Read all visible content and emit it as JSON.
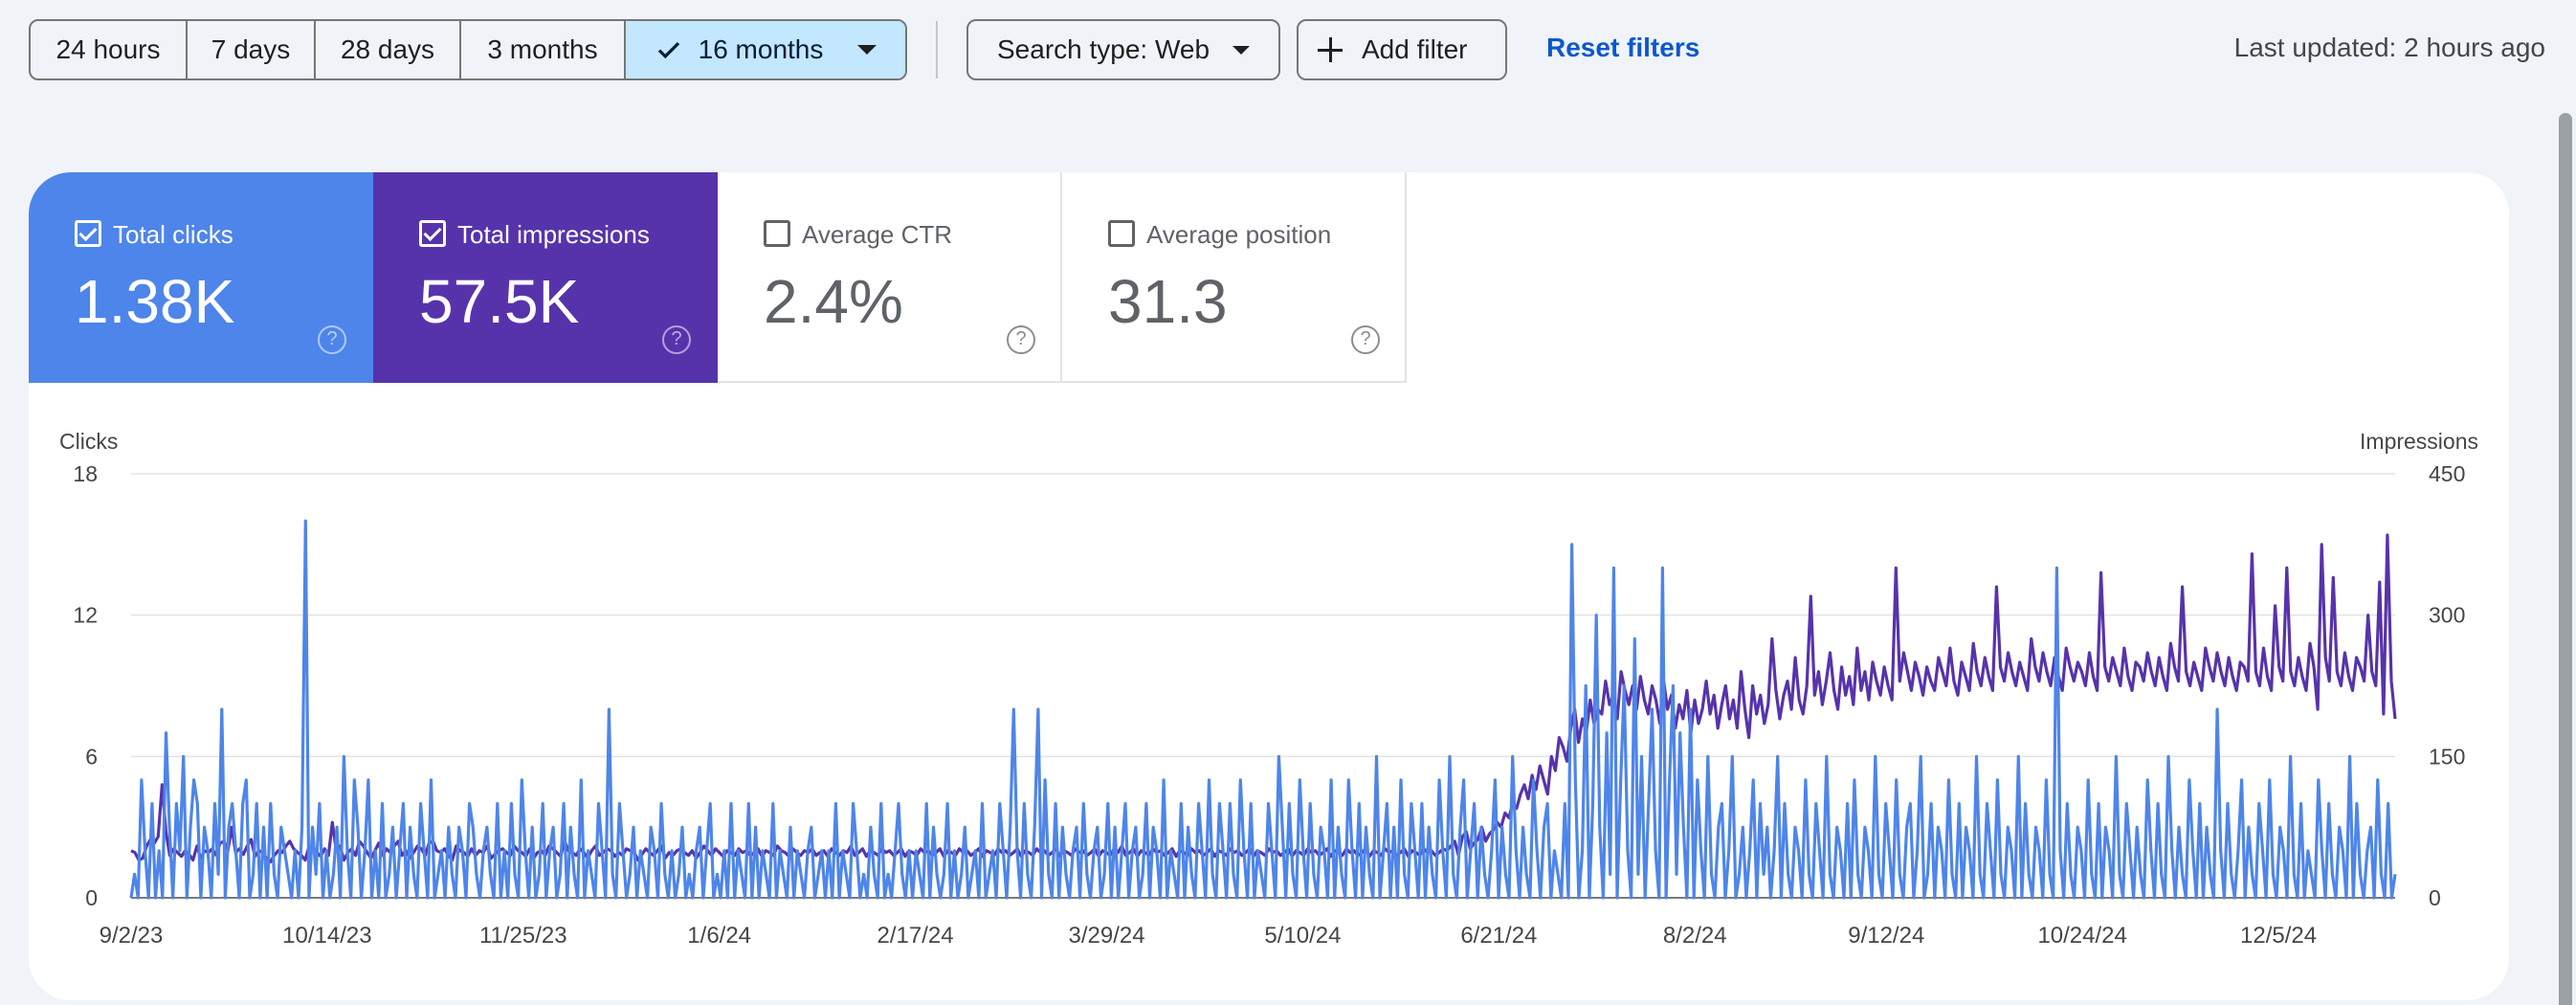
{
  "toolbar": {
    "ranges": [
      "24 hours",
      "7 days",
      "28 days",
      "3 months",
      "16 months"
    ],
    "selected_range": "16 months",
    "search_type": "Search type: Web",
    "add_filter": "Add filter",
    "reset_filters": "Reset filters",
    "last_updated": "Last updated: 2 hours ago"
  },
  "metrics": [
    {
      "label": "Total clicks",
      "value": "1.38K",
      "checked": true,
      "color": "#4e85ea"
    },
    {
      "label": "Total impressions",
      "value": "57.5K",
      "checked": true,
      "color": "#5733ab"
    },
    {
      "label": "Average CTR",
      "value": "2.4%",
      "checked": false,
      "color": "#ffffff"
    },
    {
      "label": "Average position",
      "value": "31.3",
      "checked": false,
      "color": "#ffffff"
    }
  ],
  "help_glyph": "?",
  "chart_data": {
    "type": "line",
    "ylabel": "Clicks",
    "y2label": "Impressions",
    "ylim": [
      0,
      18
    ],
    "y2lim": [
      0,
      450
    ],
    "yticks": [
      "0",
      "6",
      "12",
      "18"
    ],
    "y2ticks": [
      "0",
      "150",
      "300",
      "450"
    ],
    "x_tick_labels": [
      "9/2/23",
      "10/14/23",
      "11/25/23",
      "1/6/24",
      "2/17/24",
      "3/29/24",
      "5/10/24",
      "6/21/24",
      "8/2/24",
      "9/12/24",
      "10/24/24",
      "12/5/24"
    ],
    "x_start": "9/2/23",
    "x_end": "12/30/24",
    "grid": true,
    "series": [
      {
        "name": "Clicks",
        "axis": "left",
        "color": "#4e85ea",
        "values": [
          0,
          1,
          0,
          5,
          2,
          0,
          4,
          0,
          2,
          0,
          7,
          3,
          0,
          4,
          2,
          6,
          0,
          3,
          5,
          4,
          0,
          3,
          2,
          0,
          4,
          1,
          8,
          0,
          3,
          4,
          2,
          0,
          4,
          5,
          0,
          1,
          4,
          0,
          3,
          0,
          4,
          1,
          0,
          3,
          2,
          1,
          0,
          2,
          0,
          3,
          16,
          0,
          3,
          1,
          4,
          0,
          2,
          0,
          1,
          3,
          0,
          6,
          2,
          0,
          5,
          3,
          0,
          2,
          5,
          0,
          2,
          0,
          4,
          0,
          1,
          3,
          0,
          2,
          4,
          0,
          3,
          1,
          0,
          4,
          2,
          0,
          5,
          0,
          1,
          2,
          0,
          3,
          1,
          0,
          3,
          2,
          0,
          4,
          3,
          1,
          0,
          2,
          3,
          1,
          0,
          4,
          0,
          2,
          0,
          4,
          1,
          0,
          5,
          2,
          0,
          3,
          0,
          1,
          4,
          0,
          2,
          3,
          0,
          1,
          4,
          0,
          3,
          1,
          0,
          5,
          0,
          2,
          1,
          0,
          4,
          2,
          0,
          8,
          1,
          0,
          4,
          2,
          0,
          1,
          3,
          0,
          2,
          1,
          0,
          3,
          2,
          0,
          4,
          1,
          0,
          2,
          0,
          1,
          3,
          0,
          1,
          0,
          2,
          3,
          0,
          2,
          4,
          0,
          1,
          0,
          2,
          0,
          4,
          0,
          2,
          1,
          0,
          4,
          0,
          3,
          0,
          2,
          1,
          0,
          4,
          0,
          2,
          1,
          0,
          3,
          0,
          2,
          1,
          0,
          2,
          3,
          0,
          1,
          2,
          0,
          2,
          0,
          4,
          0,
          2,
          1,
          0,
          4,
          2,
          0,
          1,
          0,
          3,
          1,
          0,
          4,
          0,
          1,
          0,
          2,
          4,
          1,
          0,
          2,
          0,
          2,
          1,
          0,
          4,
          0,
          3,
          1,
          0,
          1,
          4,
          0,
          2,
          0,
          1,
          3,
          0,
          1,
          2,
          0,
          4,
          0,
          1,
          2,
          0,
          4,
          2,
          0,
          3,
          8,
          2,
          0,
          4,
          1,
          0,
          3,
          8,
          0,
          5,
          1,
          0,
          4,
          0,
          3,
          1,
          0,
          2,
          3,
          0,
          4,
          1,
          0,
          2,
          3,
          0,
          1,
          4,
          0,
          3,
          0,
          2,
          4,
          0,
          2,
          3,
          0,
          1,
          4,
          0,
          3,
          2,
          0,
          5,
          0,
          2,
          1,
          0,
          4,
          0,
          3,
          1,
          0,
          4,
          2,
          0,
          5,
          1,
          0,
          4,
          2,
          0,
          4,
          1,
          0,
          5,
          2,
          0,
          4,
          0,
          2,
          1,
          0,
          4,
          2,
          0,
          6,
          3,
          0,
          4,
          1,
          0,
          5,
          2,
          0,
          4,
          1,
          0,
          3,
          2,
          0,
          5,
          0,
          3,
          1,
          0,
          5,
          2,
          0,
          4,
          0,
          3,
          1,
          0,
          6,
          0,
          2,
          4,
          0,
          3,
          0,
          5,
          1,
          0,
          4,
          2,
          0,
          4,
          0,
          3,
          1,
          0,
          5,
          2,
          0,
          6,
          1,
          0,
          3,
          5,
          0,
          2,
          4,
          0,
          3,
          1,
          0,
          2,
          5,
          0,
          3,
          1,
          0,
          6,
          2,
          0,
          3,
          1,
          0,
          5,
          2,
          0,
          3,
          4,
          0,
          2,
          1,
          0,
          4,
          0,
          15,
          5,
          0,
          2,
          9,
          0,
          4,
          12,
          3,
          0,
          7,
          1,
          14,
          0,
          5,
          9,
          2,
          0,
          11,
          1,
          6,
          0,
          4,
          8,
          2,
          0,
          14,
          0,
          5,
          9,
          1,
          7,
          3,
          0,
          8,
          0,
          5,
          2,
          0,
          6,
          1,
          0,
          3,
          4,
          0,
          2,
          6,
          0,
          1,
          3,
          0,
          2,
          5,
          0,
          4,
          1,
          3,
          0,
          2,
          6,
          0,
          4,
          1,
          0,
          3,
          2,
          0,
          5,
          1,
          0,
          4,
          2,
          0,
          6,
          1,
          0,
          3,
          2,
          0,
          4,
          0,
          5,
          1,
          0,
          3,
          2,
          0,
          6,
          1,
          0,
          4,
          2,
          0,
          5,
          1,
          0,
          3,
          4,
          0,
          2,
          6,
          0,
          1,
          4,
          0,
          3,
          2,
          0,
          5,
          1,
          0,
          4,
          0,
          3,
          2,
          0,
          6,
          1,
          0,
          4,
          2,
          0,
          5,
          1,
          0,
          3,
          2,
          0,
          6,
          0,
          4,
          1,
          0,
          3,
          2,
          0,
          5,
          1,
          0,
          14,
          2,
          0,
          4,
          1,
          0,
          3,
          2,
          0,
          5,
          1,
          0,
          4,
          0,
          3,
          2,
          0,
          6,
          1,
          0,
          4,
          2,
          0,
          3,
          1,
          0,
          5,
          2,
          0,
          4,
          1,
          0,
          6,
          2,
          0,
          3,
          1,
          0,
          5,
          2,
          0,
          4,
          0,
          3,
          1,
          0,
          8,
          2,
          0,
          4,
          1,
          0,
          2,
          5,
          0,
          3,
          1,
          0,
          4,
          2,
          0,
          5,
          1,
          0,
          3,
          2,
          0,
          6,
          1,
          0,
          4,
          0,
          2,
          1,
          0,
          5,
          2,
          0,
          4,
          1,
          0,
          3,
          2,
          0,
          6,
          0,
          4,
          1,
          0,
          2,
          3,
          0,
          5,
          1,
          0,
          4,
          0,
          1
        ]
      },
      {
        "name": "Impressions",
        "axis": "right",
        "color": "#5733ab",
        "values": [
          50,
          48,
          40,
          42,
          55,
          62,
          58,
          65,
          120,
          70,
          45,
          52,
          48,
          44,
          50,
          46,
          40,
          55,
          42,
          50,
          48,
          52,
          45,
          58,
          60,
          50,
          75,
          48,
          52,
          46,
          55,
          62,
          44,
          50,
          48,
          42,
          38,
          45,
          50,
          48,
          55,
          60,
          52,
          48,
          45,
          40,
          55,
          52,
          48,
          44,
          52,
          45,
          80,
          50,
          55,
          40,
          48,
          52,
          45,
          60,
          55,
          48,
          42,
          50,
          58,
          45,
          52,
          48,
          55,
          60,
          45,
          50,
          42,
          48,
          55,
          52,
          45,
          58,
          60,
          50,
          48,
          52,
          45,
          40,
          55,
          50,
          48,
          44,
          52,
          45,
          50,
          48,
          55,
          42,
          46,
          50,
          52,
          48,
          45,
          55,
          50,
          48,
          44,
          52,
          42,
          48,
          50,
          45,
          55,
          52,
          48,
          44,
          60,
          50,
          48,
          45,
          52,
          48,
          42,
          50,
          55,
          45,
          48,
          52,
          50,
          44,
          48,
          45,
          52,
          50,
          48,
          40,
          46,
          52,
          48,
          45,
          50,
          55,
          42,
          48,
          45,
          50,
          52,
          48,
          45,
          50,
          42,
          48,
          55,
          50,
          45,
          52,
          48,
          44,
          50,
          48,
          45,
          52,
          48,
          50,
          45,
          48,
          52,
          44,
          50,
          48,
          45,
          55,
          50,
          48,
          44,
          52,
          48,
          45,
          50,
          48,
          52,
          45,
          48,
          50,
          44,
          52,
          48,
          45,
          50,
          48,
          55,
          45,
          48,
          52,
          44,
          50,
          48,
          45,
          52,
          48,
          50,
          45,
          48,
          52,
          44,
          50,
          48,
          45,
          52,
          48,
          50,
          45,
          48,
          52,
          44,
          50,
          48,
          45,
          52,
          48,
          50,
          45,
          48,
          52,
          44,
          50,
          48,
          45,
          52,
          48,
          50,
          45,
          48,
          52,
          44,
          50,
          48,
          45,
          52,
          48,
          50,
          45,
          48,
          52,
          44,
          50,
          48,
          45,
          52,
          48,
          50,
          45,
          48,
          52,
          44,
          50,
          48,
          45,
          52,
          48,
          55,
          45,
          48,
          52,
          44,
          50,
          48,
          45,
          52,
          48,
          50,
          45,
          48,
          52,
          44,
          50,
          48,
          45,
          52,
          48,
          50,
          45,
          48,
          52,
          44,
          50,
          48,
          45,
          52,
          48,
          50,
          45,
          48,
          52,
          44,
          50,
          48,
          45,
          52,
          48,
          50,
          45,
          48,
          52,
          44,
          50,
          48,
          45,
          52,
          48,
          50,
          45,
          48,
          52,
          44,
          50,
          48,
          45,
          52,
          48,
          50,
          45,
          48,
          52,
          44,
          50,
          48,
          45,
          52,
          48,
          50,
          45,
          48,
          52,
          44,
          50,
          48,
          45,
          52,
          48,
          50,
          45,
          48,
          52,
          50,
          55,
          60,
          45,
          65,
          70,
          52,
          58,
          62,
          75,
          60,
          68,
          72,
          80,
          75,
          90,
          85,
          100,
          95,
          110,
          120,
          105,
          130,
          115,
          140,
          125,
          110,
          150,
          135,
          170,
          160,
          145,
          180,
          200,
          165,
          190,
          175,
          210,
          185,
          200,
          195,
          230,
          205,
          215,
          190,
          240,
          220,
          205,
          225,
          200,
          235,
          210,
          195,
          225,
          210,
          185,
          230,
          200,
          215,
          180,
          205,
          190,
          220,
          175,
          210,
          185,
          200,
          230,
          195,
          215,
          180,
          205,
          225,
          190,
          210,
          180,
          240,
          200,
          170,
          225,
          195,
          215,
          185,
          205,
          275,
          220,
          190,
          215,
          230,
          200,
          255,
          210,
          195,
          225,
          320,
          215,
          240,
          205,
          230,
          260,
          220,
          200,
          245,
          215,
          235,
          205,
          265,
          220,
          240,
          210,
          250,
          230,
          215,
          245,
          225,
          210,
          350,
          230,
          260,
          240,
          220,
          250,
          235,
          215,
          245,
          230,
          220,
          255,
          240,
          225,
          265,
          230,
          215,
          250,
          235,
          220,
          270,
          240,
          225,
          255,
          235,
          220,
          330,
          245,
          230,
          260,
          240,
          225,
          250,
          235,
          220,
          275,
          245,
          230,
          260,
          240,
          225,
          255,
          235,
          220,
          265,
          245,
          230,
          250,
          240,
          225,
          260,
          235,
          220,
          345,
          245,
          230,
          255,
          240,
          225,
          265,
          235,
          220,
          250,
          245,
          230,
          260,
          240,
          225,
          255,
          235,
          220,
          270,
          245,
          230,
          330,
          240,
          225,
          250,
          235,
          220,
          265,
          245,
          230,
          260,
          240,
          225,
          255,
          235,
          220,
          250,
          245,
          230,
          365,
          240,
          225,
          265,
          235,
          220,
          310,
          245,
          230,
          350,
          240,
          225,
          255,
          235,
          220,
          270,
          245,
          200,
          375,
          255,
          230,
          340,
          240,
          225,
          260,
          235,
          220,
          255,
          245,
          230,
          300,
          240,
          225,
          335,
          195,
          385,
          230,
          190
        ]
      }
    ]
  }
}
